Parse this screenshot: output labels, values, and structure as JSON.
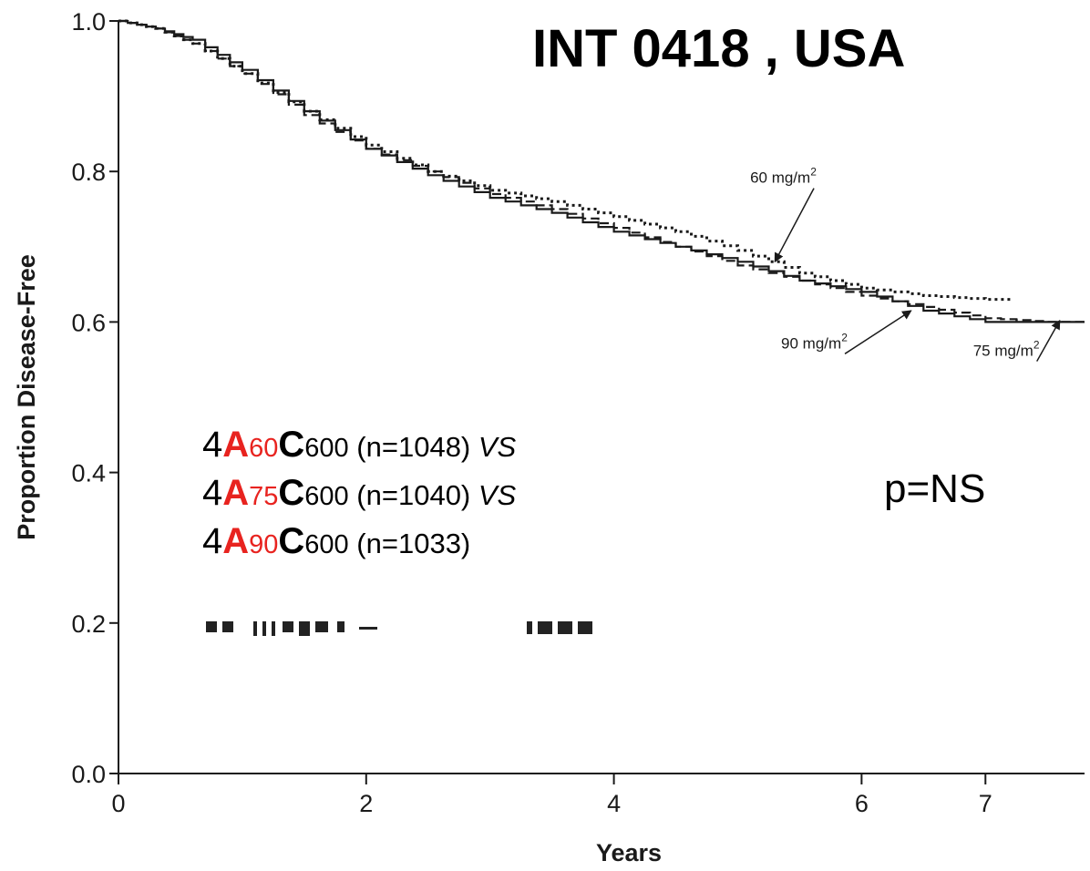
{
  "title": "INT 0418 , USA",
  "p_value": "p=NS",
  "arms": [
    {
      "prefix": "4",
      "drug_a": "A",
      "dose_a": "60",
      "drug_c": "C",
      "dose_c": "600",
      "n": " (n=1048) ",
      "vs": "VS"
    },
    {
      "prefix": "4",
      "drug_a": "A",
      "dose_a": "75",
      "drug_c": "C",
      "dose_c": "600",
      "n": " (n=1040) ",
      "vs": "VS"
    },
    {
      "prefix": "4",
      "drug_a": "A",
      "dose_a": "90",
      "drug_c": "C",
      "dose_c": "600",
      "n": " (n=1033)",
      "vs": ""
    }
  ],
  "colors": {
    "accent": "#e8231f",
    "text": "#000000",
    "line": "#1a1a1a"
  },
  "chart_data": {
    "type": "line",
    "xlabel": "Years",
    "ylabel": "Proportion Disease-Free",
    "xlim": [
      0,
      7.8
    ],
    "ylim": [
      0,
      1.0
    ],
    "x_ticks": [
      0,
      2,
      4,
      6,
      7
    ],
    "y_ticks": [
      0.0,
      0.2,
      0.4,
      0.6,
      0.8,
      1.0
    ],
    "x_tick_labels": [
      "0",
      "2",
      "4",
      "6",
      "7"
    ],
    "y_tick_labels": [
      "0.0",
      "0.2",
      "0.4",
      "0.6",
      "0.8",
      "1.0"
    ],
    "grid": false,
    "series": [
      {
        "name": "60 mg/m2",
        "style": "dotted",
        "x": [
          0,
          0.3,
          0.6,
          1.0,
          1.5,
          2.0,
          2.5,
          3.0,
          3.5,
          4.0,
          4.5,
          5.0,
          5.5,
          6.0,
          6.5,
          7.0,
          7.2
        ],
        "y": [
          1.0,
          0.99,
          0.97,
          0.93,
          0.88,
          0.835,
          0.8,
          0.775,
          0.76,
          0.74,
          0.72,
          0.695,
          0.665,
          0.645,
          0.635,
          0.63,
          0.63
        ]
      },
      {
        "name": "75 mg/m2",
        "style": "solid",
        "x": [
          0,
          0.3,
          0.6,
          1.0,
          1.5,
          2.0,
          2.5,
          3.0,
          3.5,
          4.0,
          4.5,
          5.0,
          5.5,
          6.0,
          6.5,
          7.0,
          7.5,
          7.8
        ],
        "y": [
          1.0,
          0.99,
          0.975,
          0.935,
          0.88,
          0.83,
          0.795,
          0.765,
          0.745,
          0.72,
          0.7,
          0.68,
          0.655,
          0.64,
          0.615,
          0.6,
          0.6,
          0.6
        ]
      },
      {
        "name": "90 mg/m2",
        "style": "dashed",
        "x": [
          0,
          0.3,
          0.6,
          1.0,
          1.5,
          2.0,
          2.5,
          3.0,
          3.5,
          4.0,
          4.5,
          5.0,
          5.5,
          6.0,
          6.5,
          7.0,
          7.5,
          7.8
        ],
        "y": [
          1.0,
          0.99,
          0.97,
          0.93,
          0.875,
          0.83,
          0.8,
          0.77,
          0.75,
          0.725,
          0.7,
          0.675,
          0.655,
          0.635,
          0.62,
          0.605,
          0.6,
          0.6
        ]
      }
    ],
    "annotations": [
      {
        "label": "60 mg/m",
        "sup": "2",
        "x": 5.1,
        "y": 0.785,
        "arrow_to": [
          5.3,
          0.68
        ]
      },
      {
        "label": "90 mg/m",
        "sup": "2",
        "x": 5.35,
        "y": 0.565,
        "arrow_to": [
          6.4,
          0.615
        ]
      },
      {
        "label": "75 mg/m",
        "sup": "2",
        "x": 6.9,
        "y": 0.555,
        "arrow_to": [
          7.6,
          0.602
        ]
      }
    ]
  }
}
